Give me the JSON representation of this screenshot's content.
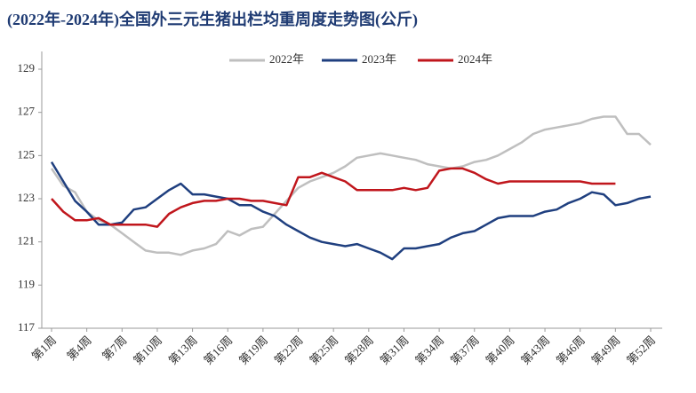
{
  "chart_data": {
    "type": "line",
    "title": "(2022年-2024年)全国外三元生猪出栏均重周度走势图(公斤)",
    "categories": [
      "第1周",
      null,
      null,
      "第4周",
      null,
      null,
      "第7周",
      null,
      null,
      "第10周",
      null,
      null,
      "第13周",
      null,
      null,
      "第16周",
      null,
      null,
      "第19周",
      null,
      null,
      "第22周",
      null,
      null,
      "第25周",
      null,
      null,
      "第28周",
      null,
      null,
      "第31周",
      null,
      null,
      "第34周",
      null,
      null,
      "第37周",
      null,
      null,
      "第40周",
      null,
      null,
      "第43周",
      null,
      null,
      "第46周",
      null,
      null,
      "第49周",
      null,
      null,
      "第52周"
    ],
    "series": [
      {
        "name": "2022年",
        "color": "#bfbfbf",
        "values": [
          124.4,
          123.6,
          123.3,
          122.4,
          122.0,
          121.8,
          121.4,
          121.0,
          120.6,
          120.5,
          120.5,
          120.4,
          120.6,
          120.7,
          120.9,
          121.5,
          121.3,
          121.6,
          121.7,
          122.3,
          122.9,
          123.5,
          123.8,
          124.0,
          124.2,
          124.5,
          124.9,
          125.0,
          125.1,
          125.0,
          124.9,
          124.8,
          124.6,
          124.5,
          124.4,
          124.5,
          124.7,
          124.8,
          125.0,
          125.3,
          125.6,
          126.0,
          126.2,
          126.3,
          126.4,
          126.5,
          126.7,
          126.8,
          126.8,
          126.0,
          126.0,
          125.5
        ]
      },
      {
        "name": "2023年",
        "color": "#1f3f7f",
        "values": [
          124.7,
          123.8,
          122.9,
          122.4,
          121.8,
          121.8,
          121.9,
          122.5,
          122.6,
          123.0,
          123.4,
          123.7,
          123.2,
          123.2,
          123.1,
          123.0,
          122.7,
          122.7,
          122.4,
          122.2,
          121.8,
          121.5,
          121.2,
          121.0,
          120.9,
          120.8,
          120.9,
          120.7,
          120.5,
          120.2,
          120.7,
          120.7,
          120.8,
          120.9,
          121.2,
          121.4,
          121.5,
          121.8,
          122.1,
          122.2,
          122.2,
          122.2,
          122.4,
          122.5,
          122.8,
          123.0,
          123.3,
          123.2,
          122.7,
          122.8,
          123.0,
          123.1
        ]
      },
      {
        "name": "2024年",
        "color": "#c0161c",
        "values": [
          123.0,
          122.4,
          122.0,
          122.0,
          122.1,
          121.8,
          121.8,
          121.8,
          121.8,
          121.7,
          122.3,
          122.6,
          122.8,
          122.9,
          122.9,
          123.0,
          123.0,
          122.9,
          122.9,
          122.8,
          122.7,
          124.0,
          124.0,
          124.2,
          124.0,
          123.8,
          123.4,
          123.4,
          123.4,
          123.4,
          123.5,
          123.4,
          123.5,
          124.3,
          124.4,
          124.4,
          124.2,
          123.9,
          123.7,
          123.8,
          123.8,
          123.8,
          123.8,
          123.8,
          123.8,
          123.8,
          123.7,
          123.7,
          123.7,
          null,
          null,
          null
        ]
      }
    ],
    "ylim": [
      117,
      129
    ],
    "yticks": [
      117,
      119,
      121,
      123,
      125,
      127,
      129
    ],
    "legend": "top"
  }
}
